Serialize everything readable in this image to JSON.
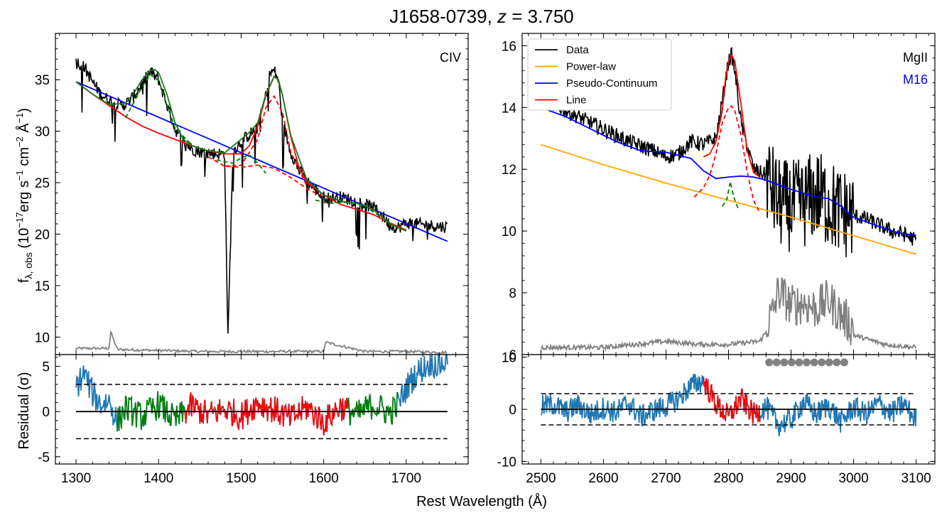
{
  "figure": {
    "title": "J1658-0739, z = 3.750",
    "xlabel": "Rest Wavelength (Å)",
    "colors": {
      "data": "#000000",
      "powerlaw": "#ffa500",
      "pseudo": "#0000ff",
      "line": "#ff0000",
      "broad_total": "#1a7a1a",
      "narrow": "#008000",
      "error": "#808080",
      "residual": "#1f77b4",
      "fit_window_red": "#ff0000",
      "fit_window_green": "#008000"
    }
  },
  "chart_data": [
    {
      "panel": "CIV-spectrum",
      "type": "line",
      "ylabel": "f_λ,obs (10^−17 erg s^−1 cm^−2 Å^−1)",
      "ylabel_main": "f",
      "ylabel_sub": "λ, obs",
      "ylabel_rest": " (10",
      "ylabel_exp1": "−17",
      "ylabel_unit1": "erg s",
      "ylabel_exp2": "−1",
      "ylabel_unit2": " cm",
      "ylabel_exp3": "−2",
      "ylabel_unit3": " Å",
      "ylabel_exp4": "−1",
      "ylabel_close": ")",
      "annotation": "CIV",
      "xlim": [
        1275,
        1775
      ],
      "ylim": [
        8.3,
        39.5
      ],
      "yticks": [
        10,
        15,
        20,
        25,
        30,
        35
      ],
      "pseudo_continuum": {
        "x": [
          1300,
          1750
        ],
        "y": [
          34.8,
          19.3
        ]
      },
      "series": [
        {
          "role": "data",
          "x": [
            1300,
            1310,
            1320,
            1330,
            1340,
            1350,
            1360,
            1370,
            1380,
            1390,
            1400,
            1410,
            1420,
            1430,
            1440,
            1450,
            1460,
            1470,
            1480,
            1484,
            1490,
            1500,
            1510,
            1520,
            1530,
            1535,
            1540,
            1545,
            1550,
            1560,
            1570,
            1580,
            1590,
            1600,
            1610,
            1620,
            1630,
            1640,
            1650,
            1660,
            1670,
            1680,
            1690,
            1700,
            1720,
            1750
          ],
          "y": [
            36.8,
            36.2,
            34.8,
            33.6,
            33.0,
            32.6,
            32.6,
            33.4,
            34.6,
            35.8,
            35.0,
            32.6,
            30.2,
            29.0,
            28.3,
            28.0,
            27.9,
            27.8,
            27.8,
            9.8,
            28.0,
            29.0,
            29.7,
            30.3,
            33.5,
            35.6,
            35.9,
            35.0,
            31.0,
            28.0,
            26.2,
            25.2,
            24.3,
            23.6,
            23.5,
            23.6,
            23.4,
            23.2,
            22.9,
            22.6,
            21.9,
            20.9,
            20.6,
            21.1,
            20.9,
            20.7
          ]
        },
        {
          "role": "line_model",
          "x": [
            1300,
            1320,
            1340,
            1360,
            1380,
            1400,
            1420,
            1440,
            1460,
            1480,
            1500,
            1510,
            1520,
            1530,
            1540,
            1545,
            1550,
            1560,
            1570,
            1580,
            1600,
            1620,
            1640,
            1660,
            1680,
            1700
          ],
          "y": [
            34.8,
            33.6,
            32.5,
            31.4,
            30.5,
            29.8,
            29.2,
            28.6,
            28.1,
            27.8,
            27.8,
            28.6,
            30.5,
            33.5,
            35.3,
            35.0,
            33.5,
            29.5,
            26.5,
            25.0,
            23.8,
            22.9,
            22.4,
            21.9,
            21.1,
            20.4
          ]
        },
        {
          "role": "broad_total",
          "x": [
            1300,
            1320,
            1340,
            1360,
            1370,
            1380,
            1390,
            1395,
            1400,
            1410,
            1420,
            1430,
            1440,
            1460,
            1480,
            1500,
            1510,
            1520,
            1530,
            1540,
            1545,
            1550,
            1560,
            1580,
            1600,
            1620,
            1640,
            1660,
            1680,
            1700
          ],
          "y": [
            34.8,
            33.6,
            32.6,
            32.7,
            33.7,
            35.0,
            35.9,
            36.0,
            35.7,
            33.6,
            30.8,
            29.2,
            28.6,
            28.1,
            27.9,
            29.2,
            29.9,
            30.8,
            33.6,
            35.3,
            35.0,
            33.5,
            29.6,
            25.2,
            23.8,
            23.2,
            23.0,
            22.4,
            21.0,
            20.3
          ]
        },
        {
          "role": "broad_component",
          "x": [
            1460,
            1480,
            1500,
            1520,
            1540,
            1560,
            1580,
            1600
          ],
          "y": [
            27.5,
            26.6,
            26.5,
            26.7,
            26.4,
            25.5,
            24.4,
            23.6
          ]
        },
        {
          "role": "broad_component",
          "x": [
            1480,
            1500,
            1520,
            1530,
            1540,
            1550,
            1560,
            1580
          ],
          "y": [
            26.6,
            26.7,
            29.2,
            32.3,
            33.4,
            31.8,
            28.0,
            24.6
          ]
        },
        {
          "role": "narrow_component",
          "x": [
            1360,
            1380,
            1390,
            1400,
            1420,
            1440
          ],
          "y": [
            31.3,
            34.3,
            35.5,
            34.9,
            30.3,
            28.7
          ]
        },
        {
          "role": "narrow_component",
          "x": [
            1470,
            1490,
            1500,
            1510,
            1520,
            1530
          ],
          "y": [
            27.2,
            26.9,
            27.4,
            27.7,
            26.9,
            25.9
          ]
        },
        {
          "role": "narrow_component",
          "x": [
            1590,
            1610,
            1630,
            1650,
            1660,
            1670,
            1690
          ],
          "y": [
            23.3,
            23.0,
            23.1,
            22.8,
            22.2,
            21.6,
            20.6
          ]
        },
        {
          "role": "error",
          "x": [
            1300,
            1330,
            1340,
            1342,
            1350,
            1400,
            1450,
            1500,
            1550,
            1600,
            1602,
            1650,
            1700,
            1750
          ],
          "y": [
            8.9,
            8.9,
            8.9,
            10.5,
            8.8,
            8.7,
            8.6,
            8.6,
            8.6,
            8.6,
            9.5,
            8.6,
            8.6,
            8.5
          ]
        }
      ]
    },
    {
      "panel": "MgII-spectrum",
      "type": "line",
      "annotation": "MgII",
      "annotation2": "M16",
      "xlim": [
        2470,
        3130
      ],
      "ylim": [
        6.0,
        16.4
      ],
      "yticks": [
        6,
        8,
        10,
        12,
        14,
        16
      ],
      "legend": {
        "placement": "top-left",
        "entries": [
          {
            "label": "Data",
            "role": "data"
          },
          {
            "label": "Power-law",
            "role": "powerlaw"
          },
          {
            "label": "Pseudo-Continuum",
            "role": "pseudo"
          },
          {
            "label": "Line",
            "role": "line"
          }
        ]
      },
      "series": [
        {
          "role": "data",
          "x": [
            2500,
            2530,
            2560,
            2600,
            2640,
            2680,
            2700,
            2720,
            2740,
            2760,
            2780,
            2790,
            2800,
            2805,
            2810,
            2820,
            2840,
            2860,
            2880,
            2900,
            2920,
            2940,
            2960,
            2980,
            3000,
            3020,
            3040,
            3060,
            3080,
            3100
          ],
          "y": [
            14.2,
            14.0,
            13.7,
            13.3,
            12.9,
            12.6,
            12.4,
            12.5,
            12.9,
            12.8,
            13.0,
            14.2,
            15.5,
            15.7,
            15.2,
            13.5,
            12.0,
            11.8,
            10.9,
            10.8,
            10.9,
            11.2,
            10.9,
            10.6,
            10.5,
            10.4,
            10.2,
            10.0,
            9.9,
            9.7
          ]
        },
        {
          "role": "powerlaw",
          "x": [
            2500,
            2600,
            2700,
            2800,
            2900,
            3000,
            3100
          ],
          "y": [
            12.8,
            12.15,
            11.55,
            11.0,
            10.45,
            9.85,
            9.25
          ]
        },
        {
          "role": "pseudo",
          "x": [
            2500,
            2540,
            2580,
            2620,
            2660,
            2700,
            2740,
            2760,
            2780,
            2800,
            2820,
            2840,
            2860,
            2900,
            2940,
            2960,
            2980,
            3000,
            3040,
            3070,
            3100
          ],
          "y": [
            14.0,
            13.7,
            13.3,
            12.9,
            12.6,
            12.55,
            12.35,
            11.95,
            11.7,
            11.75,
            11.78,
            11.75,
            11.65,
            11.35,
            11.1,
            11.05,
            10.8,
            10.45,
            10.15,
            9.95,
            9.85
          ]
        },
        {
          "role": "line",
          "x": [
            2760,
            2770,
            2780,
            2790,
            2795,
            2800,
            2805,
            2810,
            2820,
            2830,
            2840,
            2850
          ],
          "y": [
            12.4,
            12.5,
            12.9,
            13.9,
            14.9,
            15.5,
            15.7,
            15.5,
            14.1,
            12.6,
            11.9,
            11.75
          ]
        },
        {
          "role": "broad_component",
          "x": [
            2745,
            2760,
            2770,
            2780,
            2790,
            2800,
            2805,
            2810,
            2820,
            2830,
            2840,
            2850
          ],
          "y": [
            11.1,
            11.4,
            11.8,
            12.5,
            13.5,
            14.0,
            14.05,
            13.9,
            13.1,
            11.9,
            11.0,
            10.6
          ]
        },
        {
          "role": "narrow_component",
          "x": [
            2790,
            2797,
            2800,
            2803,
            2806,
            2810,
            2816
          ],
          "y": [
            10.8,
            11.0,
            11.3,
            11.6,
            11.3,
            11.0,
            10.7
          ]
        },
        {
          "role": "error",
          "x": [
            2500,
            2600,
            2650,
            2700,
            2750,
            2800,
            2850,
            2870,
            2880,
            2900,
            2920,
            2940,
            2960,
            2980,
            3000,
            3050,
            3100
          ],
          "y": [
            6.2,
            6.2,
            6.3,
            6.4,
            6.3,
            6.3,
            6.4,
            7.0,
            7.8,
            7.3,
            7.4,
            7.2,
            7.5,
            7.0,
            6.6,
            6.3,
            6.2
          ]
        }
      ]
    },
    {
      "panel": "CIV-residual",
      "type": "line",
      "ylabel": "Residual (σ)",
      "xlim": [
        1275,
        1775
      ],
      "ylim": [
        -5.8,
        6.3
      ],
      "yticks": [
        -5,
        0,
        5
      ],
      "xticks": [
        1300,
        1400,
        1500,
        1600,
        1700
      ],
      "threshold_lines": [
        3,
        -3
      ],
      "zero_line": 0,
      "fit_windows": [
        {
          "color": "green",
          "x": [
            1350,
            1432
          ]
        },
        {
          "color": "red",
          "x": [
            1432,
            1630
          ]
        },
        {
          "color": "green",
          "x": [
            1630,
            1690
          ]
        }
      ],
      "series": [
        {
          "role": "residual",
          "x": [
            1300,
            1310,
            1320,
            1330,
            1340,
            1350,
            1360,
            1380,
            1400,
            1420,
            1440,
            1460,
            1480,
            1500,
            1520,
            1540,
            1560,
            1580,
            1600,
            1620,
            1640,
            1660,
            1680,
            1690,
            1700,
            1710,
            1720,
            1730,
            1740,
            1750
          ],
          "y": [
            2.8,
            4.2,
            2.0,
            0.8,
            1.2,
            -1.2,
            0.4,
            -0.6,
            0.8,
            -1.0,
            0.6,
            -0.4,
            0.3,
            -0.5,
            1.0,
            0.2,
            -0.8,
            0.5,
            -1.2,
            0.6,
            -0.4,
            0.8,
            -0.2,
            0.8,
            2.6,
            4.0,
            4.8,
            5.4,
            5.2,
            5.6
          ]
        }
      ]
    },
    {
      "panel": "MgII-residual",
      "type": "line",
      "xlim": [
        2470,
        3130
      ],
      "ylim": [
        -10.5,
        10.5
      ],
      "yticks": [
        -10,
        0,
        10
      ],
      "xticks": [
        2500,
        2600,
        2700,
        2800,
        2900,
        3000,
        3100
      ],
      "threshold_lines": [
        3,
        -3
      ],
      "zero_line": 0,
      "fit_windows": [
        {
          "color": "red",
          "x": [
            2760,
            2850
          ]
        }
      ],
      "masked_points_y": 9.0,
      "masked_points_x": [
        2865,
        2877,
        2889,
        2901,
        2913,
        2925,
        2937,
        2949,
        2961,
        2973,
        2985
      ],
      "series": [
        {
          "role": "residual",
          "x": [
            2500,
            2520,
            2540,
            2560,
            2580,
            2600,
            2620,
            2640,
            2660,
            2680,
            2700,
            2720,
            2740,
            2760,
            2780,
            2800,
            2820,
            2840,
            2860,
            2880,
            2900,
            2920,
            2940,
            2960,
            2980,
            3000,
            3020,
            3040,
            3060,
            3080,
            3100
          ],
          "y": [
            0.5,
            1.0,
            -0.5,
            0.8,
            -1.0,
            0.3,
            -0.6,
            1.2,
            -1.5,
            -0.2,
            0.6,
            2.0,
            4.5,
            5.5,
            1.0,
            -1.5,
            2.0,
            -1.0,
            0.5,
            -3.0,
            -2.0,
            1.5,
            -1.0,
            0.8,
            -2.5,
            0.5,
            -1.0,
            1.2,
            -0.8,
            1.0,
            -2.0
          ]
        }
      ]
    }
  ]
}
